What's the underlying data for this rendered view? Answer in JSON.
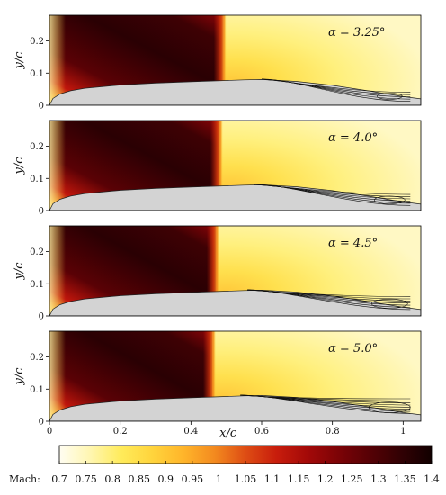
{
  "chart_data": [
    {
      "type": "heatmap",
      "panel": "1",
      "annotation": "α = 3.25°",
      "ylabel": "y/c",
      "xlim": [
        0,
        1.05
      ],
      "ylim": [
        0,
        0.28
      ],
      "x_ticks": [],
      "y_ticks": [
        "0",
        "0.1",
        "0.2"
      ],
      "shock_x": 0.49,
      "separation_x": 0.6
    },
    {
      "type": "heatmap",
      "panel": "2",
      "annotation": "α = 4.0°",
      "ylabel": "y/c",
      "xlim": [
        0,
        1.05
      ],
      "ylim": [
        0,
        0.28
      ],
      "x_ticks": [],
      "y_ticks": [
        "0",
        "0.1",
        "0.2"
      ],
      "shock_x": 0.48,
      "separation_x": 0.58
    },
    {
      "type": "heatmap",
      "panel": "3",
      "annotation": "α = 4.5°",
      "ylabel": "y/c",
      "xlim": [
        0,
        1.05
      ],
      "ylim": [
        0,
        0.28
      ],
      "x_ticks": [],
      "y_ticks": [
        "0",
        "0.1",
        "0.2"
      ],
      "shock_x": 0.47,
      "separation_x": 0.56
    },
    {
      "type": "heatmap",
      "panel": "4",
      "annotation": "α = 5.0°",
      "ylabel": "y/c",
      "xlabel": "x/c",
      "xlim": [
        0,
        1.05
      ],
      "ylim": [
        0,
        0.28
      ],
      "x_ticks": [
        "0",
        "0.2",
        "0.4",
        "0.6",
        "0.8",
        "1"
      ],
      "y_ticks": [
        "0",
        "0.1",
        "0.2"
      ],
      "shock_x": 0.46,
      "separation_x": 0.54
    }
  ],
  "colorbar": {
    "label": "Mach:",
    "range": [
      0.7,
      1.4
    ],
    "ticks": [
      "0.7",
      "0.75",
      "0.8",
      "0.85",
      "0.9",
      "0.95",
      "1",
      "1.05",
      "1.1",
      "1.15",
      "1.2",
      "1.25",
      "1.3",
      "1.35",
      "1.4"
    ],
    "colors": [
      "#fffdf2",
      "#fff6b0",
      "#ffeb5a",
      "#ffd43c",
      "#ffb52a",
      "#f38a1f",
      "#de4d14",
      "#c81d0c",
      "#a30908",
      "#7c0306",
      "#560105",
      "#320104",
      "#120000"
    ]
  }
}
